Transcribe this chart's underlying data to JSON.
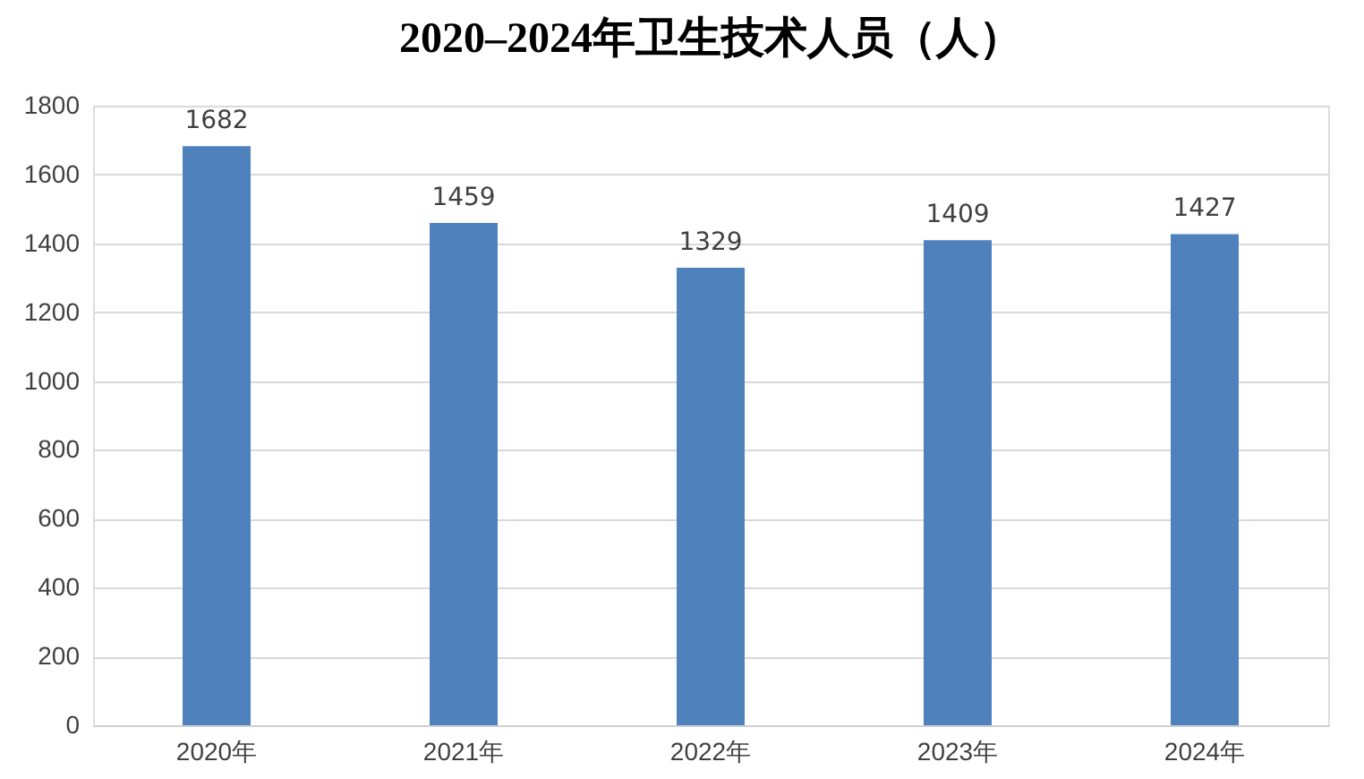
{
  "chart_data": {
    "type": "bar",
    "title": "2020–2024年卫生技术人员（人）",
    "categories": [
      "2020年",
      "2021年",
      "2022年",
      "2023年",
      "2024年"
    ],
    "values": [
      1682,
      1459,
      1329,
      1409,
      1427
    ],
    "color": "#4f81bd",
    "ylim": [
      0,
      1800
    ],
    "yticks": [
      0,
      200,
      400,
      600,
      800,
      1000,
      1200,
      1400,
      1600,
      1800
    ],
    "grid": "y",
    "data_labels": true
  }
}
